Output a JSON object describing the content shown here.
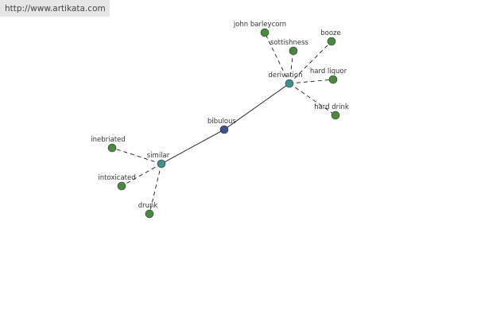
{
  "header": {
    "url": "http://www.artikata.com"
  },
  "nodes": [
    {
      "label": "bibulous"
    },
    {
      "label": "similar"
    },
    {
      "label": "derivation"
    },
    {
      "label": "inebriated"
    },
    {
      "label": "intoxicated"
    },
    {
      "label": "drunk"
    },
    {
      "label": "john barleycorn"
    },
    {
      "label": "sottishness"
    },
    {
      "label": "booze"
    },
    {
      "label": "hard liquor"
    },
    {
      "label": "hard drink"
    }
  ]
}
